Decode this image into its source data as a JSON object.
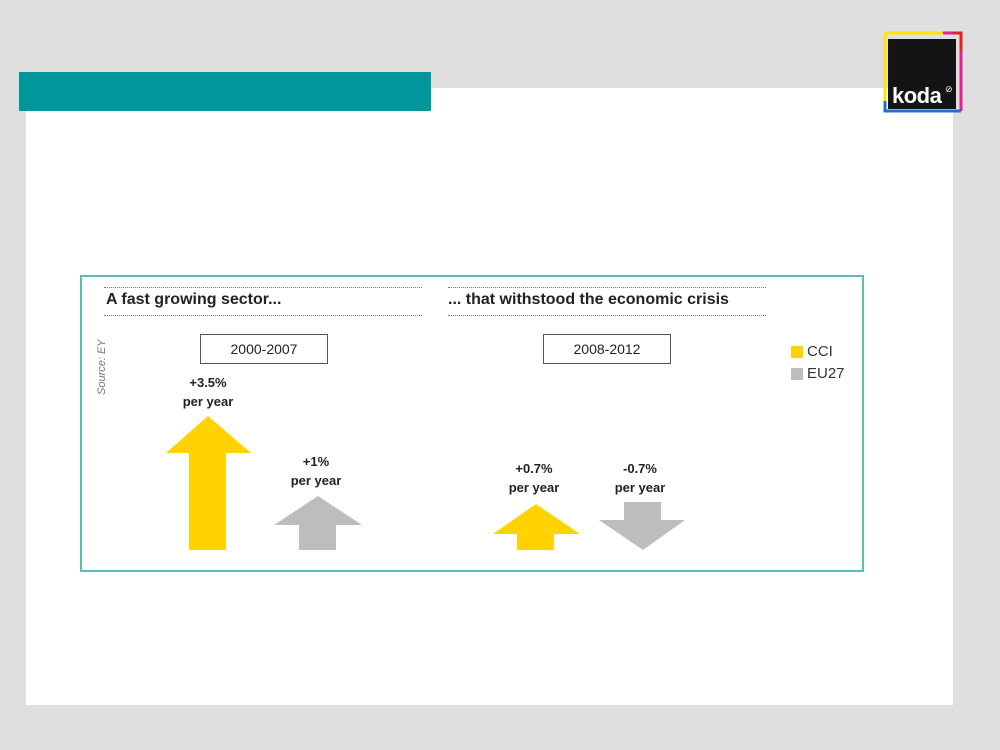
{
  "brand": {
    "logo_text": "koda",
    "logo_mark": "⊘"
  },
  "panel": {
    "left_heading": "A fast growing sector...",
    "right_heading": "... that withstood the economic crisis",
    "source": "Source: EY",
    "periods": [
      "2000-2007",
      "2008-2012"
    ]
  },
  "legend": [
    {
      "label": "CCI",
      "color": "#ffd300"
    },
    {
      "label": "EU27",
      "color": "#bdbdbd"
    }
  ],
  "growth": [
    {
      "period": "2000-2007",
      "series": "CCI",
      "value_label": "+3.5%",
      "unit_label": "per year",
      "value": 3.5,
      "direction": "up"
    },
    {
      "period": "2000-2007",
      "series": "EU27",
      "value_label": "+1%",
      "unit_label": "per year",
      "value": 1,
      "direction": "up"
    },
    {
      "period": "2008-2012",
      "series": "CCI",
      "value_label": "+0.7%",
      "unit_label": "per year",
      "value": 0.7,
      "direction": "up"
    },
    {
      "period": "2008-2012",
      "series": "EU27",
      "value_label": "-0.7%",
      "unit_label": "per year",
      "value": -0.7,
      "direction": "down"
    }
  ]
}
